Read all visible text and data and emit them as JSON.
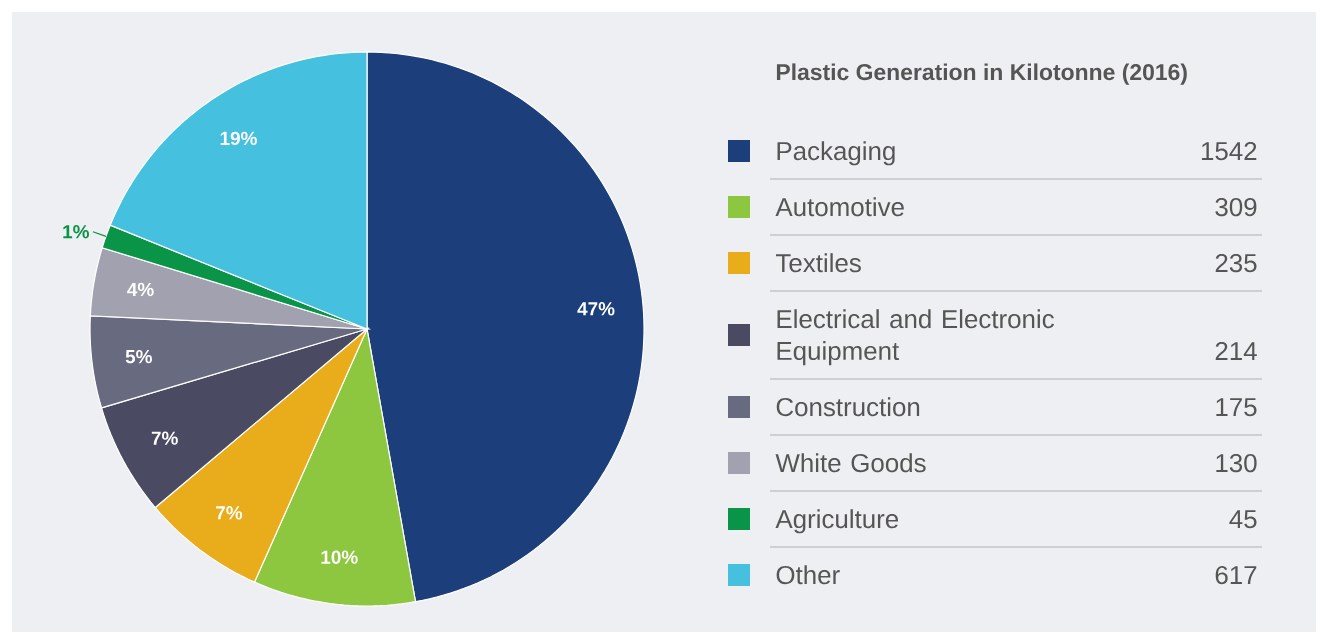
{
  "chart_data": {
    "type": "pie",
    "title": "Plastic Generation in Kilotonne (2016)",
    "categories": [
      "Packaging",
      "Automotive",
      "Textiles",
      "Electrical and Electronic Equipment",
      "Construction",
      "White Goods",
      "Agriculture",
      "Other"
    ],
    "values": [
      1542,
      309,
      235,
      214,
      175,
      130,
      45,
      617
    ],
    "colors": [
      "#1c3f7c",
      "#8dc63f",
      "#e9ac1b",
      "#4a4a63",
      "#686a80",
      "#a1a1b0",
      "#0a9447",
      "#45c1df"
    ],
    "annotations": [
      {
        "text": "47%",
        "x": "Packaging"
      },
      {
        "text": "10%",
        "x": "Automotive"
      },
      {
        "text": "7%",
        "x": "Textiles"
      },
      {
        "text": "7%",
        "x": "Electrical and Electronic Equipment"
      },
      {
        "text": "5%",
        "x": "Construction"
      },
      {
        "text": "4%",
        "x": "White Goods"
      },
      {
        "text": "1%",
        "x": "Agriculture"
      },
      {
        "text": "19%",
        "x": "Other"
      }
    ],
    "data_labels": true,
    "legend": "right"
  }
}
